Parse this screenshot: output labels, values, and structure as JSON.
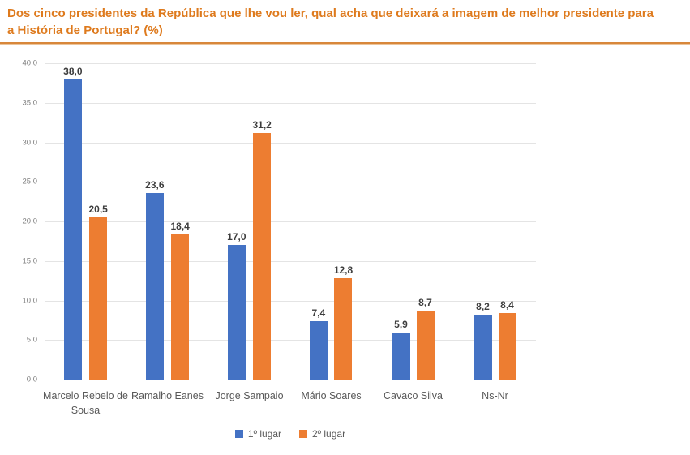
{
  "title": "Dos cinco presidentes da República que lhe vou ler, qual acha que deixará a imagem de melhor presidente para a História de Portugal? (%)",
  "colors": {
    "title_text": "#DE7A1D",
    "title_rule": "#D8873A",
    "series1": "#4472C4",
    "series2": "#ED7D31",
    "gridline": "#E4E4E4",
    "axis_text": "#7F7F7F",
    "value_label_text": "#3D3D3D",
    "category_text": "#595959"
  },
  "chart_data": {
    "type": "bar",
    "categories": [
      "Marcelo Rebelo de Sousa",
      "Ramalho Eanes",
      "Jorge Sampaio",
      "Mário Soares",
      "Cavaco Silva",
      "Ns-Nr"
    ],
    "series": [
      {
        "name": "1º lugar",
        "color": "#4472C4",
        "values": [
          38.0,
          23.6,
          17.0,
          7.4,
          5.9,
          8.2
        ],
        "labels": [
          "38,0",
          "23,6",
          "17,0",
          "7,4",
          "5,9",
          "8,2"
        ]
      },
      {
        "name": "2º lugar",
        "color": "#ED7D31",
        "values": [
          20.5,
          18.4,
          31.2,
          12.8,
          8.7,
          8.4
        ],
        "labels": [
          "20,5",
          "18,4",
          "31,2",
          "12,8",
          "8,7",
          "8,4"
        ]
      }
    ],
    "xlabel": "",
    "ylabel": "",
    "ylim": [
      0,
      40
    ],
    "ytick_step": 5,
    "ytick_labels": [
      "0,0",
      "5,0",
      "10,0",
      "15,0",
      "20,0",
      "25,0",
      "30,0",
      "35,0",
      "40,0"
    ],
    "grid": true,
    "legend_position": "bottom"
  }
}
